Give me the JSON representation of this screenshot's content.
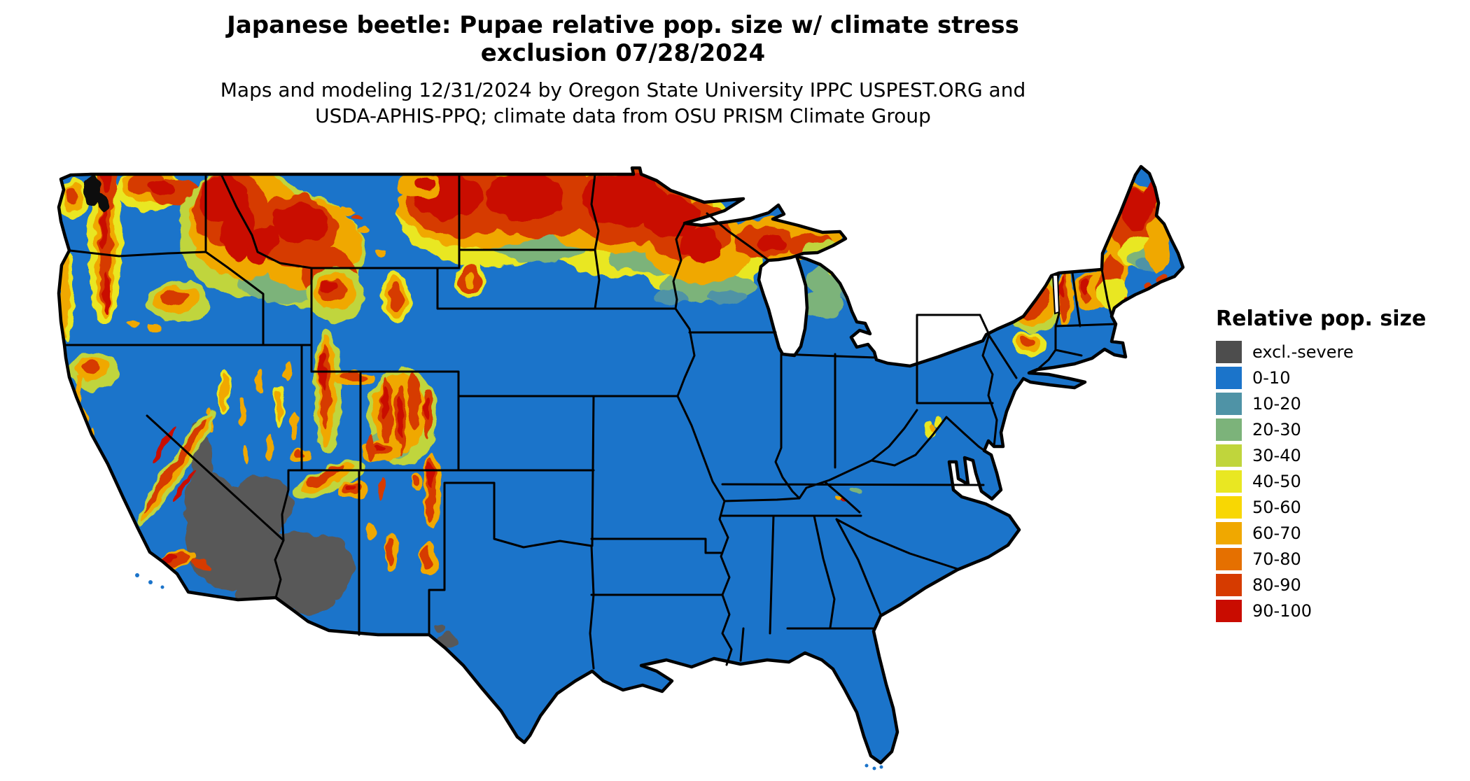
{
  "header": {
    "title_line1": "Japanese beetle: Pupae relative pop. size w/ climate stress",
    "title_line2": "exclusion 07/28/2024",
    "subtitle_line1": "Maps and modeling 12/31/2024 by Oregon State University IPPC USPEST.ORG and",
    "subtitle_line2": "USDA-APHIS-PPQ; climate data from OSU PRISM Climate Group"
  },
  "legend": {
    "title": "Relative pop. size",
    "entries": [
      {
        "label": "excl.-severe",
        "color": "#4d4d4d"
      },
      {
        "label": "0-10",
        "color": "#1b74ca"
      },
      {
        "label": "10-20",
        "color": "#4f93a6"
      },
      {
        "label": "20-30",
        "color": "#7cb37a"
      },
      {
        "label": "30-40",
        "color": "#c0d53c"
      },
      {
        "label": "40-50",
        "color": "#e9e722"
      },
      {
        "label": "50-60",
        "color": "#f8d703"
      },
      {
        "label": "60-70",
        "color": "#f0a800"
      },
      {
        "label": "70-80",
        "color": "#e57000"
      },
      {
        "label": "80-90",
        "color": "#d63b00"
      },
      {
        "label": "90-100",
        "color": "#c90c00"
      }
    ]
  },
  "palette": {
    "base": "#1b74ca",
    "exclusion": "#595959",
    "teal": "#4f93a6",
    "green": "#7cb37a",
    "ygreen": "#c0d53c",
    "yellow": "#e9e722",
    "gold": "#f8d703",
    "orange": "#f0a800",
    "dorange": "#e57000",
    "red2": "#d63b00",
    "red": "#c90c00",
    "border": "#000000",
    "background": "#ffffff"
  },
  "map": {
    "region_label": "contiguous United States"
  }
}
